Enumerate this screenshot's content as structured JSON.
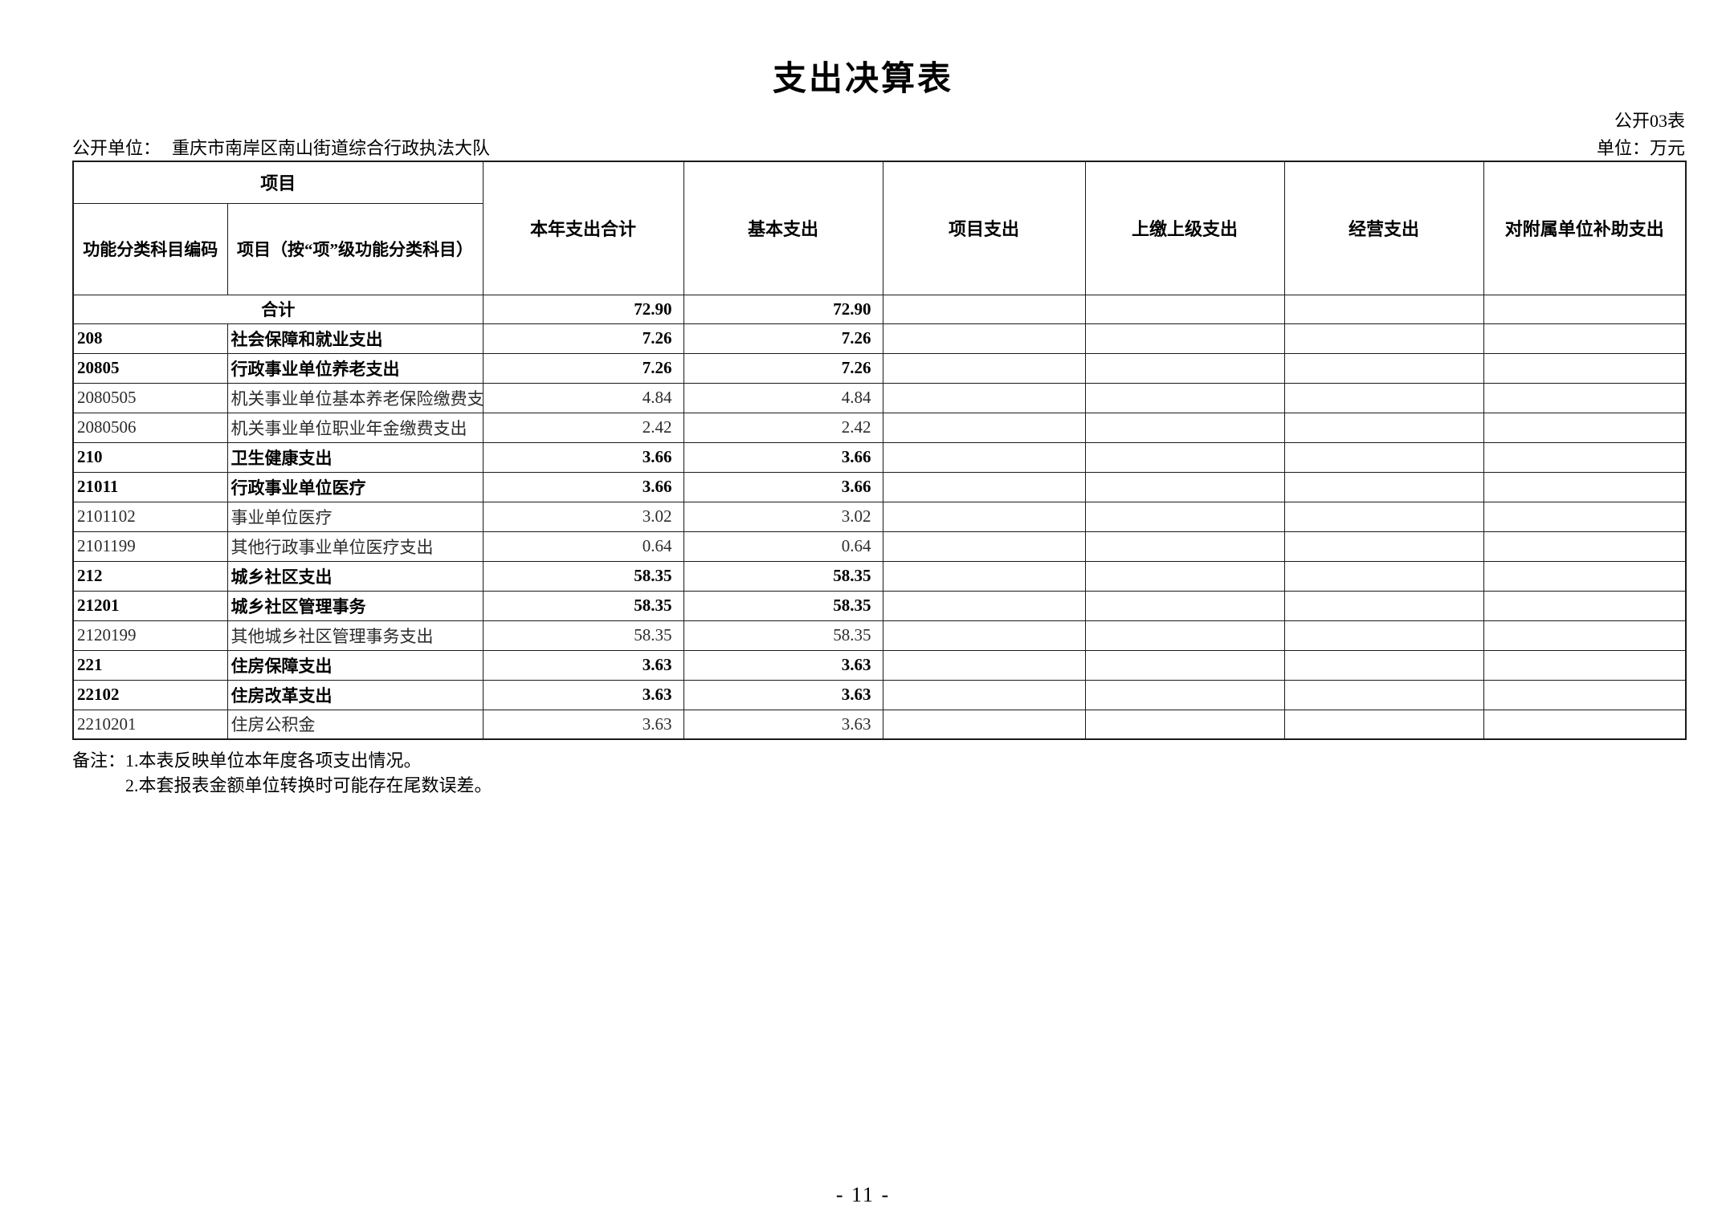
{
  "page": {
    "title": "支出决算表",
    "table_code": "公开03表",
    "unit_label": "单位：万元",
    "org_label": "公开单位：",
    "org_name": "重庆市南岸区南山街道综合行政执法大队",
    "page_number": "- 11 -"
  },
  "table": {
    "header": {
      "group_col": "项目",
      "col_code": "功能分类科目编码",
      "col_item": "项目（按“项”级功能分类科目）",
      "col_total": "本年支出合计",
      "col_basic": "基本支出",
      "col_project": "项目支出",
      "col_upper": "上缴上级支出",
      "col_operating": "经营支出",
      "col_subsidy": "对附属单位补助支出"
    },
    "rows": [
      {
        "code": "",
        "name": "合计",
        "total": "72.90",
        "basic": "72.90",
        "project": "",
        "upper": "",
        "operating": "",
        "subsidy": "",
        "bold": true,
        "merged": true
      },
      {
        "code": "208",
        "name": "社会保障和就业支出",
        "total": "7.26",
        "basic": "7.26",
        "project": "",
        "upper": "",
        "operating": "",
        "subsidy": "",
        "bold": true,
        "merged": false
      },
      {
        "code": "20805",
        "name": "行政事业单位养老支出",
        "total": "7.26",
        "basic": "7.26",
        "project": "",
        "upper": "",
        "operating": "",
        "subsidy": "",
        "bold": true,
        "merged": false
      },
      {
        "code": "2080505",
        "name": "机关事业单位基本养老保险缴费支出",
        "total": "4.84",
        "basic": "4.84",
        "project": "",
        "upper": "",
        "operating": "",
        "subsidy": "",
        "bold": false,
        "merged": false
      },
      {
        "code": "2080506",
        "name": "机关事业单位职业年金缴费支出",
        "total": "2.42",
        "basic": "2.42",
        "project": "",
        "upper": "",
        "operating": "",
        "subsidy": "",
        "bold": false,
        "merged": false
      },
      {
        "code": "210",
        "name": "卫生健康支出",
        "total": "3.66",
        "basic": "3.66",
        "project": "",
        "upper": "",
        "operating": "",
        "subsidy": "",
        "bold": true,
        "merged": false
      },
      {
        "code": "21011",
        "name": "行政事业单位医疗",
        "total": "3.66",
        "basic": "3.66",
        "project": "",
        "upper": "",
        "operating": "",
        "subsidy": "",
        "bold": true,
        "merged": false
      },
      {
        "code": "2101102",
        "name": "事业单位医疗",
        "total": "3.02",
        "basic": "3.02",
        "project": "",
        "upper": "",
        "operating": "",
        "subsidy": "",
        "bold": false,
        "merged": false
      },
      {
        "code": "2101199",
        "name": "其他行政事业单位医疗支出",
        "total": "0.64",
        "basic": "0.64",
        "project": "",
        "upper": "",
        "operating": "",
        "subsidy": "",
        "bold": false,
        "merged": false
      },
      {
        "code": "212",
        "name": "城乡社区支出",
        "total": "58.35",
        "basic": "58.35",
        "project": "",
        "upper": "",
        "operating": "",
        "subsidy": "",
        "bold": true,
        "merged": false
      },
      {
        "code": "21201",
        "name": "城乡社区管理事务",
        "total": "58.35",
        "basic": "58.35",
        "project": "",
        "upper": "",
        "operating": "",
        "subsidy": "",
        "bold": true,
        "merged": false
      },
      {
        "code": "2120199",
        "name": "其他城乡社区管理事务支出",
        "total": "58.35",
        "basic": "58.35",
        "project": "",
        "upper": "",
        "operating": "",
        "subsidy": "",
        "bold": false,
        "merged": false
      },
      {
        "code": "221",
        "name": "住房保障支出",
        "total": "3.63",
        "basic": "3.63",
        "project": "",
        "upper": "",
        "operating": "",
        "subsidy": "",
        "bold": true,
        "merged": false
      },
      {
        "code": "22102",
        "name": "住房改革支出",
        "total": "3.63",
        "basic": "3.63",
        "project": "",
        "upper": "",
        "operating": "",
        "subsidy": "",
        "bold": true,
        "merged": false
      },
      {
        "code": "2210201",
        "name": "住房公积金",
        "total": "3.63",
        "basic": "3.63",
        "project": "",
        "upper": "",
        "operating": "",
        "subsidy": "",
        "bold": false,
        "merged": false
      }
    ]
  },
  "notes": {
    "line1": "备注：1.本表反映单位本年度各项支出情况。",
    "line2": "2.本套报表金额单位转换时可能存在尾数误差。"
  }
}
